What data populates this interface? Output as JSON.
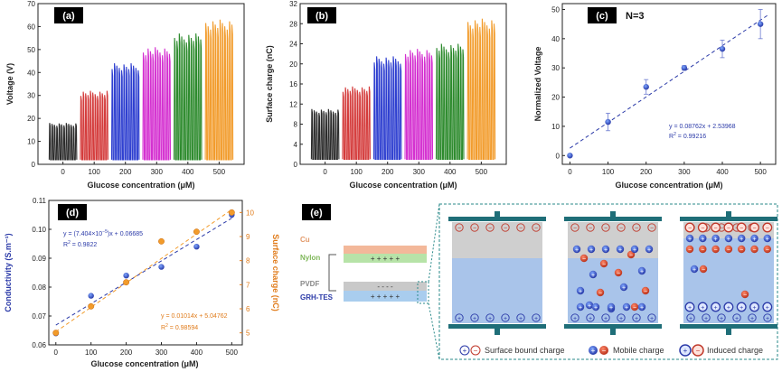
{
  "chart_data": [
    {
      "panel": "(a)",
      "type": "line",
      "xlabel": "Glucose concentration (μM)",
      "ylabel": "Voltage (V)",
      "ylim": [
        0,
        70
      ],
      "xticks": [
        "0",
        "100",
        "200",
        "300",
        "400",
        "500"
      ],
      "yticks": [
        "0",
        "10",
        "20",
        "30",
        "40",
        "50",
        "60",
        "70"
      ],
      "series": [
        {
          "x": 0,
          "peak": 18,
          "base": 2,
          "color": "#2b2b2b"
        },
        {
          "x": 100,
          "peak": 32,
          "base": 2,
          "color": "#d43b3b"
        },
        {
          "x": 200,
          "peak": 44,
          "base": 2,
          "color": "#2e3fd0"
        },
        {
          "x": 300,
          "peak": 51,
          "base": 2,
          "color": "#d42fd0"
        },
        {
          "x": 400,
          "peak": 57,
          "base": 2,
          "color": "#2c8a2c"
        },
        {
          "x": 500,
          "peak": 63,
          "base": 2,
          "color": "#f29b2a"
        }
      ]
    },
    {
      "panel": "(b)",
      "type": "line",
      "xlabel": "Glucose concentration (μM)",
      "ylabel": "Surface charge (nC)",
      "ylim": [
        0,
        32
      ],
      "xticks": [
        "0",
        "100",
        "200",
        "300",
        "400",
        "500"
      ],
      "yticks": [
        "0",
        "4",
        "8",
        "12",
        "16",
        "20",
        "24",
        "28",
        "32"
      ],
      "series": [
        {
          "x": 0,
          "peak": 11,
          "base": 1,
          "color": "#2b2b2b"
        },
        {
          "x": 100,
          "peak": 15.5,
          "base": 1,
          "color": "#d43b3b"
        },
        {
          "x": 200,
          "peak": 21.5,
          "base": 1,
          "color": "#2e3fd0"
        },
        {
          "x": 300,
          "peak": 23,
          "base": 1,
          "color": "#d42fd0"
        },
        {
          "x": 400,
          "peak": 24,
          "base": 1,
          "color": "#2c8a2c"
        },
        {
          "x": 500,
          "peak": 29,
          "base": 1,
          "color": "#f29b2a"
        }
      ]
    },
    {
      "panel": "(c)",
      "type": "scatter",
      "annotation": "N=3",
      "xlabel": "Glucose concentration (μM)",
      "ylabel": "Normalized Voltage",
      "xlim": [
        -20,
        540
      ],
      "ylim": [
        -3,
        52
      ],
      "xticks": [
        "0",
        "100",
        "200",
        "300",
        "400",
        "500"
      ],
      "yticks": [
        "0",
        "10",
        "20",
        "30",
        "40",
        "50"
      ],
      "x": [
        0,
        100,
        200,
        300,
        400,
        500
      ],
      "y": [
        0,
        11.5,
        23.5,
        30,
        36.5,
        45
      ],
      "err": [
        0.5,
        3,
        2.5,
        0.8,
        3,
        5
      ],
      "fit": {
        "slope": 0.08762,
        "intercept": 2.53968
      },
      "fit_eq": "y = 0.08762x + 2.53968",
      "r2_text": "R",
      "r2_sup": "2",
      "r2_val": " = 0.99216"
    },
    {
      "panel": "(d)",
      "type": "scatter",
      "xlabel": "Glucose concentration (μM)",
      "ylabel_left": "Conductivity (S.m⁻¹)",
      "ylabel_right": "Surface charge (nC)",
      "xlim": [
        -20,
        530
      ],
      "ylim_left": [
        0.06,
        0.11
      ],
      "ylim_right": [
        4.5,
        10.5
      ],
      "xticks": [
        "0",
        "100",
        "200",
        "300",
        "400",
        "500"
      ],
      "yticks_left": [
        "0.06",
        "0.07",
        "0.08",
        "0.09",
        "0.10",
        "0.11"
      ],
      "yticks_right": [
        "5",
        "6",
        "7",
        "8",
        "9",
        "10"
      ],
      "series": [
        {
          "name": "Conductivity",
          "color": "#2b3aa8",
          "x": [
            0,
            100,
            200,
            300,
            400,
            500
          ],
          "y": [
            0.064,
            0.077,
            0.084,
            0.087,
            0.094,
            0.105
          ],
          "fit": {
            "slope": 7.404e-05,
            "intercept": 0.06685
          }
        },
        {
          "name": "Surface charge",
          "color": "#f29b2a",
          "x": [
            0,
            100,
            200,
            300,
            400,
            500
          ],
          "y": [
            5.0,
            6.1,
            7.1,
            8.8,
            9.2,
            10.0
          ],
          "fit": {
            "slope": 0.01014,
            "intercept": 5.04762
          }
        }
      ],
      "eq_blue_1": "y = (7.404×10",
      "eq_blue_sup": "−5",
      "eq_blue_2": ")x + 0.06685",
      "r2_blue_val": " = 0.9822",
      "eq_orange": "y = 0.01014x + 5.04762",
      "r2_orange_val": " = 0.98594",
      "r2_text": "R",
      "r2_sup": "2"
    }
  ],
  "panel_e": {
    "label": "(e)",
    "layers": [
      "Cu",
      "Nylon",
      "PVDF",
      "GRH-TES"
    ],
    "plus_signs": "+ + + + +",
    "minus_signs": "- - - -",
    "legend": [
      "Surface bound  charge",
      "Mobile charge",
      "Induced charge"
    ],
    "colors": {
      "cu": "#f3b89a",
      "nylon": "#b7e3a8",
      "pvdf": "#c9c9c9",
      "grh": "#a9cdee",
      "teal": "#1f6e78",
      "blue_region": "#a9c4ea",
      "gray_region": "#cfcfcf",
      "red": "#c0392b",
      "blue_charge": "#2b3aa8"
    }
  }
}
